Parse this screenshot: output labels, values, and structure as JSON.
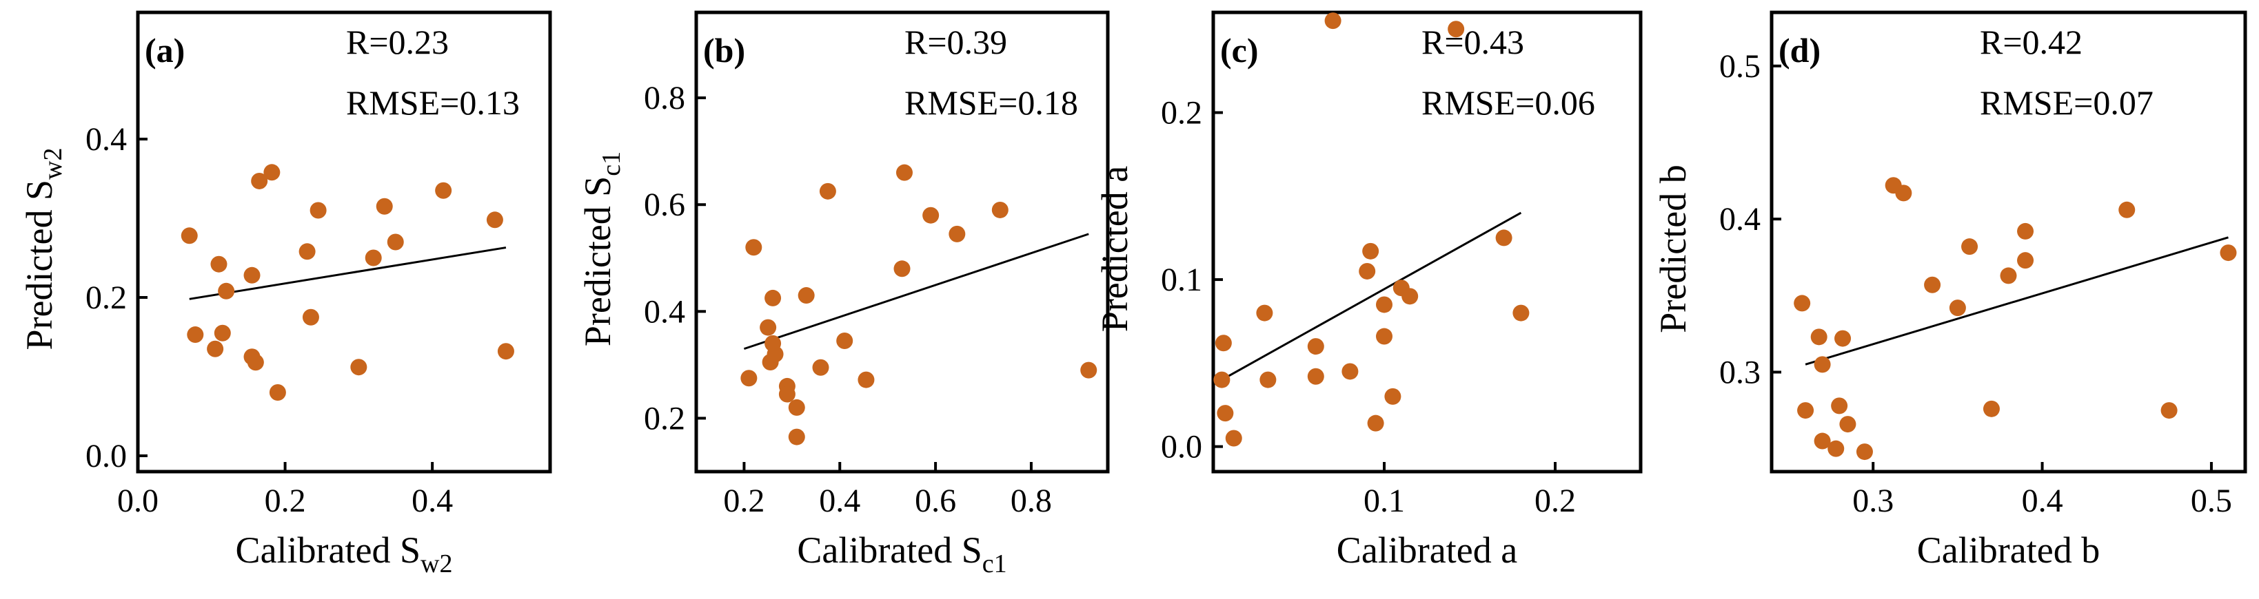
{
  "chart_data": [
    {
      "type": "scatter",
      "panel_label": "(a)",
      "stats": [
        "R=0.23",
        "RMSE=0.13"
      ],
      "xlabel": {
        "main": "Calibrated  S",
        "sub": "w2"
      },
      "ylabel": {
        "main": "Predicted  S",
        "sub": "w2"
      },
      "xlim": [
        0.0,
        0.56
      ],
      "ylim": [
        -0.02,
        0.56
      ],
      "xticks": [
        {
          "v": 0.0,
          "label": "0.0"
        },
        {
          "v": 0.2,
          "label": "0.2"
        },
        {
          "v": 0.4,
          "label": "0.4"
        }
      ],
      "yticks": [
        {
          "v": 0.0,
          "label": "0.0"
        },
        {
          "v": 0.2,
          "label": "0.2"
        },
        {
          "v": 0.4,
          "label": "0.4"
        }
      ],
      "fit": [
        [
          0.07,
          0.198
        ],
        [
          0.5,
          0.263
        ]
      ],
      "points": [
        [
          0.07,
          0.278
        ],
        [
          0.078,
          0.153
        ],
        [
          0.105,
          0.135
        ],
        [
          0.11,
          0.242
        ],
        [
          0.115,
          0.155
        ],
        [
          0.12,
          0.208
        ],
        [
          0.155,
          0.125
        ],
        [
          0.155,
          0.228
        ],
        [
          0.16,
          0.118
        ],
        [
          0.165,
          0.347
        ],
        [
          0.182,
          0.358
        ],
        [
          0.19,
          0.08
        ],
        [
          0.23,
          0.258
        ],
        [
          0.235,
          0.175
        ],
        [
          0.245,
          0.31
        ],
        [
          0.3,
          0.112
        ],
        [
          0.32,
          0.25
        ],
        [
          0.335,
          0.315
        ],
        [
          0.35,
          0.27
        ],
        [
          0.415,
          0.335
        ],
        [
          0.485,
          0.298
        ],
        [
          0.5,
          0.132
        ]
      ]
    },
    {
      "type": "scatter",
      "panel_label": "(b)",
      "stats": [
        "R=0.39",
        "RMSE=0.18"
      ],
      "xlabel": {
        "main": "Calibrated  S",
        "sub": "c1"
      },
      "ylabel": {
        "main": "Predicted  S",
        "sub": "c1"
      },
      "xlim": [
        0.1,
        0.96
      ],
      "ylim": [
        0.1,
        0.96
      ],
      "xticks": [
        {
          "v": 0.2,
          "label": "0.2"
        },
        {
          "v": 0.4,
          "label": "0.4"
        },
        {
          "v": 0.6,
          "label": "0.6"
        },
        {
          "v": 0.8,
          "label": "0.8"
        }
      ],
      "yticks": [
        {
          "v": 0.2,
          "label": "0.2"
        },
        {
          "v": 0.4,
          "label": "0.4"
        },
        {
          "v": 0.6,
          "label": "0.6"
        },
        {
          "v": 0.8,
          "label": "0.8"
        }
      ],
      "fit": [
        [
          0.2,
          0.33
        ],
        [
          0.92,
          0.545
        ]
      ],
      "points": [
        [
          0.21,
          0.275
        ],
        [
          0.22,
          0.52
        ],
        [
          0.25,
          0.37
        ],
        [
          0.255,
          0.305
        ],
        [
          0.26,
          0.425
        ],
        [
          0.26,
          0.34
        ],
        [
          0.265,
          0.32
        ],
        [
          0.29,
          0.26
        ],
        [
          0.29,
          0.245
        ],
        [
          0.31,
          0.22
        ],
        [
          0.31,
          0.165
        ],
        [
          0.33,
          0.43
        ],
        [
          0.36,
          0.295
        ],
        [
          0.375,
          0.625
        ],
        [
          0.41,
          0.345
        ],
        [
          0.455,
          0.272
        ],
        [
          0.53,
          0.48
        ],
        [
          0.535,
          0.66
        ],
        [
          0.59,
          0.58
        ],
        [
          0.645,
          0.545
        ],
        [
          0.735,
          0.59
        ],
        [
          0.92,
          0.29
        ]
      ]
    },
    {
      "type": "scatter",
      "panel_label": "(c)",
      "stats": [
        "R=0.43",
        "RMSE=0.06"
      ],
      "xlabel": {
        "main": "Calibrated  a",
        "sub": ""
      },
      "ylabel": {
        "main": "Predicted  a",
        "sub": ""
      },
      "xlim": [
        0.0,
        0.25
      ],
      "ylim": [
        -0.015,
        0.26
      ],
      "xticks": [
        {
          "v": 0.1,
          "label": "0.1"
        },
        {
          "v": 0.2,
          "label": "0.2"
        }
      ],
      "yticks": [
        {
          "v": 0.0,
          "label": "0.0"
        },
        {
          "v": 0.1,
          "label": "0.1"
        },
        {
          "v": 0.2,
          "label": "0.2"
        }
      ],
      "fit": [
        [
          0.005,
          0.04
        ],
        [
          0.18,
          0.14
        ]
      ],
      "points": [
        [
          0.005,
          0.04
        ],
        [
          0.006,
          0.062
        ],
        [
          0.007,
          0.02
        ],
        [
          0.012,
          0.005
        ],
        [
          0.03,
          0.08
        ],
        [
          0.032,
          0.04
        ],
        [
          0.06,
          0.06
        ],
        [
          0.06,
          0.042
        ],
        [
          0.07,
          0.255
        ],
        [
          0.08,
          0.045
        ],
        [
          0.09,
          0.105
        ],
        [
          0.092,
          0.117
        ],
        [
          0.095,
          0.014
        ],
        [
          0.1,
          0.066
        ],
        [
          0.1,
          0.085
        ],
        [
          0.105,
          0.03
        ],
        [
          0.11,
          0.095
        ],
        [
          0.115,
          0.09
        ],
        [
          0.142,
          0.25
        ],
        [
          0.17,
          0.125
        ],
        [
          0.18,
          0.08
        ]
      ]
    },
    {
      "type": "scatter",
      "panel_label": "(d)",
      "stats": [
        "R=0.42",
        "RMSE=0.07"
      ],
      "xlabel": {
        "main": "Calibrated  b",
        "sub": ""
      },
      "ylabel": {
        "main": "Predicted  b",
        "sub": ""
      },
      "xlim": [
        0.24,
        0.52
      ],
      "ylim": [
        0.235,
        0.535
      ],
      "xticks": [
        {
          "v": 0.3,
          "label": "0.3"
        },
        {
          "v": 0.4,
          "label": "0.4"
        },
        {
          "v": 0.5,
          "label": "0.5"
        }
      ],
      "yticks": [
        {
          "v": 0.3,
          "label": "0.3"
        },
        {
          "v": 0.4,
          "label": "0.4"
        },
        {
          "v": 0.5,
          "label": "0.5"
        }
      ],
      "fit": [
        [
          0.26,
          0.305
        ],
        [
          0.51,
          0.388
        ]
      ],
      "points": [
        [
          0.258,
          0.345
        ],
        [
          0.26,
          0.275
        ],
        [
          0.268,
          0.323
        ],
        [
          0.27,
          0.305
        ],
        [
          0.27,
          0.255
        ],
        [
          0.278,
          0.25
        ],
        [
          0.28,
          0.278
        ],
        [
          0.282,
          0.322
        ],
        [
          0.285,
          0.266
        ],
        [
          0.295,
          0.248
        ],
        [
          0.312,
          0.422
        ],
        [
          0.318,
          0.417
        ],
        [
          0.335,
          0.357
        ],
        [
          0.35,
          0.342
        ],
        [
          0.357,
          0.382
        ],
        [
          0.37,
          0.276
        ],
        [
          0.38,
          0.363
        ],
        [
          0.39,
          0.373
        ],
        [
          0.39,
          0.392
        ],
        [
          0.45,
          0.406
        ],
        [
          0.475,
          0.275
        ],
        [
          0.51,
          0.378
        ]
      ]
    }
  ]
}
